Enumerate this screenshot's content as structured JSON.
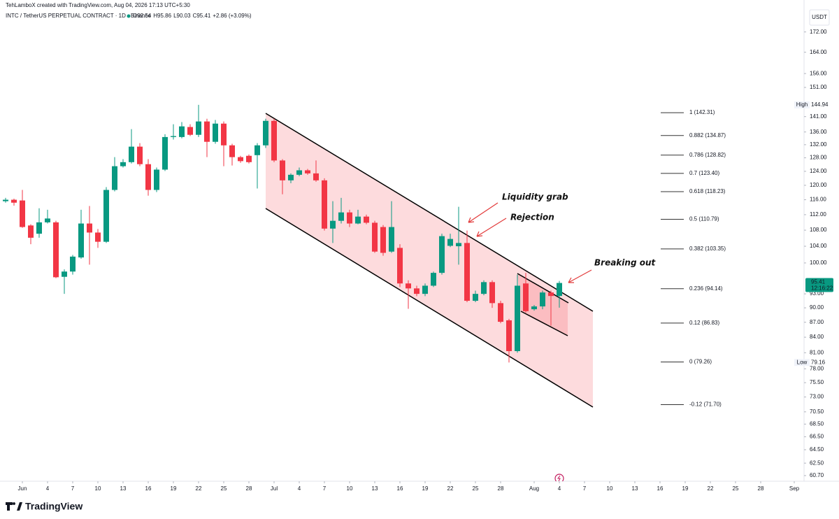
{
  "header": {
    "attribution": "TehLamboX created with TradingView.com, Aug 04, 2026 17:13 UTC+5:30",
    "symbol": "INTC / TetherUS PERPETUAL CONTRACT · 1D · Binance",
    "ohlc_labels": [
      "O",
      "H",
      "L",
      "C"
    ],
    "change": "+2.86 (+3.09%)"
  },
  "chart_data": {
    "type": "candlestick",
    "currency": "USDT",
    "log_scale": true,
    "up_color": "#089981",
    "down_color": "#f23645",
    "x": [
      "May 30",
      "May 31",
      "Jun 1",
      "Jun 2",
      "Jun 3",
      "Jun 4",
      "Jun 5",
      "Jun 6",
      "Jun 7",
      "Jun 8",
      "Jun 9",
      "Jun 10",
      "Jun 11",
      "Jun 12",
      "Jun 13",
      "Jun 14",
      "Jun 15",
      "Jun 16",
      "Jun 17",
      "Jun 18",
      "Jun 19",
      "Jun 20",
      "Jun 21",
      "Jun 22",
      "Jun 23",
      "Jun 24",
      "Jun 25",
      "Jun 26",
      "Jun 27",
      "Jun 28",
      "Jun 29",
      "Jun 30",
      "Jul 1",
      "Jul 2",
      "Jul 3",
      "Jul 4",
      "Jul 5",
      "Jul 6",
      "Jul 7",
      "Jul 8",
      "Jul 9",
      "Jul 10",
      "Jul 11",
      "Jul 12",
      "Jul 13",
      "Jul 14",
      "Jul 15",
      "Jul 16",
      "Jul 17",
      "Jul 18",
      "Jul 19",
      "Jul 20",
      "Jul 21",
      "Jul 22",
      "Jul 23",
      "Jul 24",
      "Jul 25",
      "Jul 26",
      "Jul 27",
      "Jul 28",
      "Jul 29",
      "Jul 30",
      "Jul 31",
      "Aug 1",
      "Aug 2",
      "Aug 3",
      "Aug 4"
    ],
    "open": [
      115.6,
      116.0,
      115.8,
      109.2,
      107.1,
      110.0,
      110.0,
      96.8,
      98.0,
      101.3,
      109.7,
      107.4,
      105.1,
      118.7,
      125.5,
      126.7,
      131.4,
      126.1,
      118.7,
      124.5,
      134.4,
      134.4,
      137.6,
      135.1,
      139.4,
      132.9,
      138.7,
      131.8,
      128.2,
      128.6,
      128.8,
      131.8,
      139.6,
      127.2,
      121.4,
      123.0,
      124.3,
      123.4,
      121.4,
      108.4,
      110.4,
      112.6,
      109.7,
      111.5,
      109.9,
      108.8,
      102.7,
      103.6,
      95.3,
      94.2,
      93.0,
      94.8,
      97.7,
      104.1,
      104.0,
      104.8,
      91.5,
      93.0,
      95.6,
      91.0,
      87.4,
      81.3,
      95.3,
      89.7,
      90.3,
      93.3,
      92.54
    ],
    "high": [
      116.5,
      116.3,
      118.7,
      109.5,
      113.7,
      113.3,
      110.4,
      98.5,
      101.9,
      113.3,
      114.3,
      108.3,
      119.5,
      128.2,
      127.6,
      136.9,
      132.5,
      127.6,
      125.1,
      135.3,
      138.5,
      139.2,
      138.5,
      144.94,
      140.3,
      139.9,
      139.4,
      132.3,
      128.6,
      129.0,
      132.5,
      140.3,
      140.3,
      127.6,
      123.4,
      125.1,
      124.7,
      127.2,
      122.0,
      115.6,
      116.5,
      113.3,
      113.3,
      112.0,
      110.4,
      109.3,
      115.6,
      104.5,
      96.0,
      94.8,
      95.3,
      98.0,
      107.1,
      107.1,
      114.1,
      107.9,
      93.7,
      96.0,
      96.0,
      91.5,
      87.7,
      97.3,
      97.7,
      90.6,
      93.7,
      93.7,
      95.86
    ],
    "low": [
      115.2,
      114.4,
      108.6,
      104.5,
      106.1,
      109.7,
      96.5,
      93.0,
      97.3,
      101.0,
      99.6,
      103.6,
      104.8,
      118.3,
      125.1,
      126.3,
      125.5,
      117.1,
      118.1,
      124.1,
      133.6,
      134.0,
      134.7,
      134.4,
      128.2,
      132.3,
      125.5,
      125.7,
      126.5,
      126.3,
      119.1,
      131.0,
      126.7,
      117.5,
      120.6,
      122.6,
      123.0,
      121.0,
      107.9,
      104.8,
      109.7,
      108.8,
      109.5,
      109.5,
      102.4,
      101.7,
      102.4,
      94.5,
      89.8,
      92.5,
      92.5,
      94.5,
      97.3,
      103.8,
      99.6,
      91.2,
      91.2,
      92.7,
      90.0,
      86.8,
      79.16,
      81.0,
      89.0,
      89.4,
      89.7,
      86.3,
      90.03
    ],
    "close": [
      116.0,
      115.2,
      108.8,
      106.1,
      110.0,
      111.0,
      96.7,
      98.0,
      101.5,
      109.7,
      107.4,
      105.1,
      118.7,
      125.5,
      126.7,
      131.4,
      126.1,
      118.7,
      124.5,
      134.4,
      134.7,
      137.8,
      135.1,
      139.4,
      132.9,
      138.7,
      131.8,
      128.2,
      127.0,
      126.7,
      131.8,
      139.6,
      127.2,
      121.4,
      123.0,
      124.3,
      123.4,
      121.4,
      108.4,
      110.4,
      112.6,
      109.7,
      111.5,
      109.9,
      102.7,
      102.4,
      108.8,
      95.3,
      94.2,
      93.0,
      94.8,
      97.7,
      106.5,
      105.8,
      104.8,
      91.5,
      93.0,
      95.6,
      91.0,
      87.1,
      81.3,
      94.8,
      89.3,
      90.3,
      93.3,
      92.54,
      95.41
    ],
    "xlim": [
      "May 29",
      "Sep 3"
    ],
    "xticks": [
      {
        "value": "Jun 1",
        "label": "Jun"
      },
      {
        "value": "Jun 4",
        "label": "4"
      },
      {
        "value": "Jun 7",
        "label": "7"
      },
      {
        "value": "Jun 10",
        "label": "10"
      },
      {
        "value": "Jun 13",
        "label": "13"
      },
      {
        "value": "Jun 16",
        "label": "16"
      },
      {
        "value": "Jun 19",
        "label": "19"
      },
      {
        "value": "Jun 22",
        "label": "22"
      },
      {
        "value": "Jun 25",
        "label": "25"
      },
      {
        "value": "Jun 28",
        "label": "28"
      },
      {
        "value": "Jul 1",
        "label": "Jul"
      },
      {
        "value": "Jul 4",
        "label": "4"
      },
      {
        "value": "Jul 7",
        "label": "7"
      },
      {
        "value": "Jul 10",
        "label": "10"
      },
      {
        "value": "Jul 13",
        "label": "13"
      },
      {
        "value": "Jul 16",
        "label": "16"
      },
      {
        "value": "Jul 19",
        "label": "19"
      },
      {
        "value": "Jul 22",
        "label": "22"
      },
      {
        "value": "Jul 25",
        "label": "25"
      },
      {
        "value": "Jul 28",
        "label": "28"
      },
      {
        "value": "Aug 1",
        "label": "Aug"
      },
      {
        "value": "Aug 4",
        "label": "4"
      },
      {
        "value": "Aug 7",
        "label": "7"
      },
      {
        "value": "Aug 10",
        "label": "10"
      },
      {
        "value": "Aug 13",
        "label": "13"
      },
      {
        "value": "Aug 16",
        "label": "16"
      },
      {
        "value": "Aug 19",
        "label": "19"
      },
      {
        "value": "Aug 22",
        "label": "22"
      },
      {
        "value": "Aug 25",
        "label": "25"
      },
      {
        "value": "Aug 28",
        "label": "28"
      },
      {
        "value": "Sep 1",
        "label": "Sep"
      }
    ],
    "ylim": [
      60,
      180
    ],
    "yticks": [
      {
        "value": 172,
        "label": "172.00"
      },
      {
        "value": 164,
        "label": "164.00"
      },
      {
        "value": 156,
        "label": "156.00"
      },
      {
        "value": 151,
        "label": "151.00"
      },
      {
        "value": 141,
        "label": "141.00"
      },
      {
        "value": 136,
        "label": "136.00"
      },
      {
        "value": 132,
        "label": "132.00"
      },
      {
        "value": 128,
        "label": "128.00"
      },
      {
        "value": 124,
        "label": "124.00"
      },
      {
        "value": 120,
        "label": "120.00"
      },
      {
        "value": 116,
        "label": "116.00"
      },
      {
        "value": 112,
        "label": "112.00"
      },
      {
        "value": 108,
        "label": "108.00"
      },
      {
        "value": 104,
        "label": "104.00"
      },
      {
        "value": 100,
        "label": "100.00"
      },
      {
        "value": 93,
        "label": "93.00"
      },
      {
        "value": 90,
        "label": "90.00"
      },
      {
        "value": 87,
        "label": "87.00"
      },
      {
        "value": 84,
        "label": "84.00"
      },
      {
        "value": 81,
        "label": "81.00"
      },
      {
        "value": 78,
        "label": "78.00"
      },
      {
        "value": 75.5,
        "label": "75.50"
      },
      {
        "value": 73,
        "label": "73.00"
      },
      {
        "value": 70.5,
        "label": "70.50"
      },
      {
        "value": 68.5,
        "label": "68.50"
      },
      {
        "value": 66.5,
        "label": "66.50"
      },
      {
        "value": 64.5,
        "label": "64.50"
      },
      {
        "value": 62.5,
        "label": "62.50"
      },
      {
        "value": 60.7,
        "label": "60.70"
      }
    ],
    "high_label": "High",
    "high_value": 144.94,
    "low_label": "Low",
    "low_value": 79.16,
    "countdown": "12:16:22",
    "fib_levels": {
      "values": [
        142.31,
        134.87,
        128.82,
        123.4,
        118.23,
        110.79,
        103.35,
        94.14,
        86.83,
        79.26,
        71.7
      ],
      "value_labels": [
        "1 (142.31)",
        "0.882 (134.87)",
        "0.786 (128.82)",
        "0.7 (123.40)",
        "0.618 (118.23)",
        "0.5 (110.79)",
        "0.382 (103.35)",
        "0.236 (94.14)",
        "0.12 (86.83)",
        "0 (79.26)",
        "-0.12 (71.70)"
      ]
    },
    "annotations": [
      "Liquidity grab",
      "Rejection",
      "Breaking out"
    ]
  },
  "branding": "TradingView"
}
